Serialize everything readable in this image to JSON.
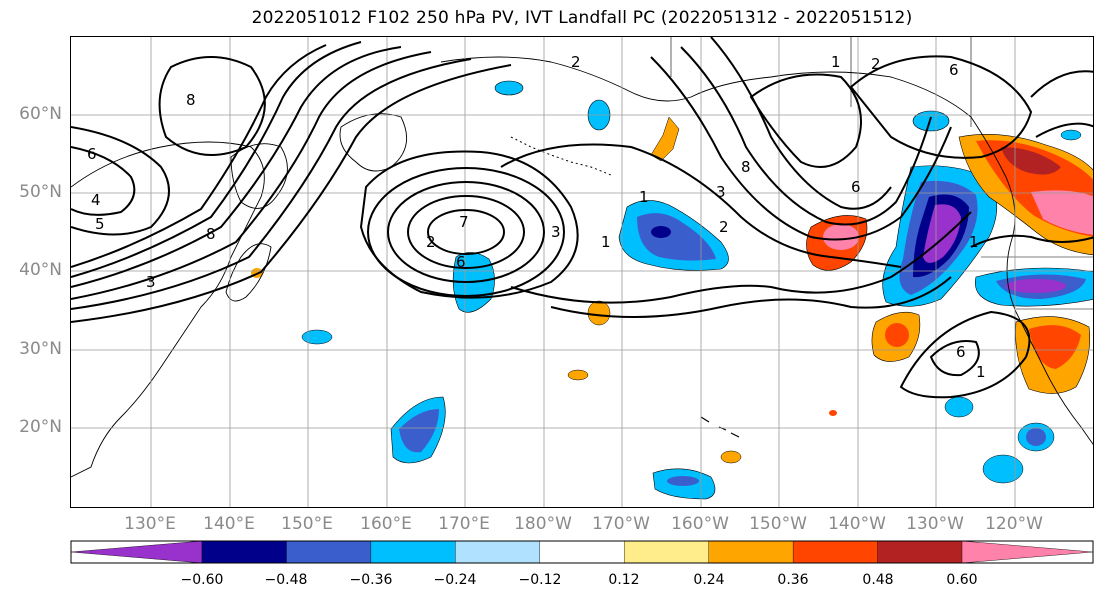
{
  "title": "2022051012 F102 250 hPa PV, IVT Landfall PC (2022051312 - 2022051512)",
  "lat_labels": [
    "60°N",
    "50°N",
    "40°N",
    "30°N",
    "20°N"
  ],
  "lon_labels": [
    "130°E",
    "140°E",
    "150°E",
    "160°E",
    "170°E",
    "180°W",
    "170°W",
    "160°W",
    "150°W",
    "140°W",
    "130°W",
    "120°W"
  ],
  "colorbar": {
    "ticks": [
      "−0.60",
      "−0.48",
      "−0.36",
      "−0.24",
      "−0.12",
      "0.12",
      "0.24",
      "0.36",
      "0.48",
      "0.60"
    ],
    "colors": [
      "#9932cc",
      "#00008b",
      "#3a5fcd",
      "#00bfff",
      "#b0e2ff",
      "#ffffff",
      "#ffec8b",
      "#ffa500",
      "#ff4500",
      "#b22222",
      "#ff82ab"
    ]
  },
  "contour_labels": [
    "8",
    "6",
    "5",
    "4",
    "3",
    "8",
    "7",
    "2",
    "1",
    "6",
    "3",
    "1",
    "2",
    "3",
    "2",
    "8",
    "1",
    "2",
    "6",
    "6",
    "1",
    "6",
    "1"
  ],
  "colors": {
    "land_outline": "#000000",
    "grid": "#9a9a9a",
    "contour": "#000000"
  }
}
